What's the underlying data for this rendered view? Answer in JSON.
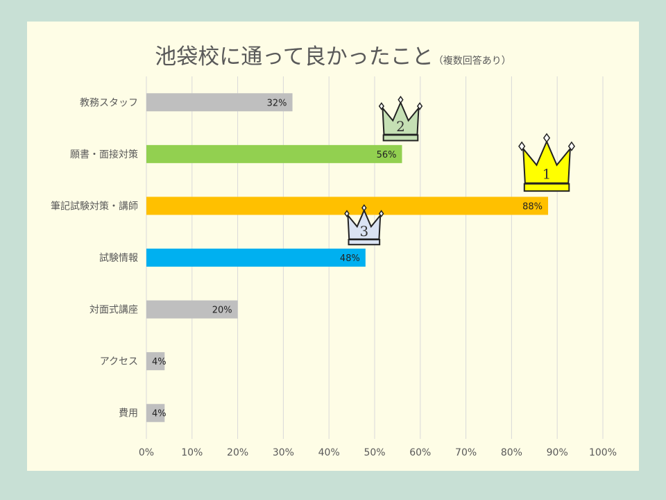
{
  "chart_data": {
    "type": "bar",
    "orientation": "horizontal",
    "title": "池袋校に通って良かったこと",
    "subtitle": "（複数回答あり）",
    "categories": [
      "教務スタッフ",
      "願書・面接対策",
      "筆記試験対策・講師",
      "試験情報",
      "対面式講座",
      "アクセス",
      "費用"
    ],
    "values": [
      32,
      56,
      88,
      48,
      20,
      4,
      4
    ],
    "value_labels": [
      "32%",
      "56%",
      "88%",
      "48%",
      "20%",
      "4%",
      "4%"
    ],
    "bar_colors": [
      "#bfbfbf",
      "#92d050",
      "#ffc000",
      "#00b0f0",
      "#bfbfbf",
      "#bfbfbf",
      "#bfbfbf"
    ],
    "xlim": [
      0,
      100
    ],
    "x_ticks": [
      0,
      10,
      20,
      30,
      40,
      50,
      60,
      70,
      80,
      90,
      100
    ],
    "x_tick_labels": [
      "0%",
      "10%",
      "20%",
      "30%",
      "40%",
      "50%",
      "60%",
      "70%",
      "80%",
      "90%",
      "100%"
    ],
    "grid": "vertical",
    "legend": "none",
    "rank_badges": [
      {
        "category": "筆記試験対策・講師",
        "rank": "1",
        "icon": "crown-icon",
        "color": "#ffff00"
      },
      {
        "category": "願書・面接対策",
        "rank": "2",
        "icon": "crown-icon",
        "color": "#c5e0b4"
      },
      {
        "category": "試験情報",
        "rank": "3",
        "icon": "crown-icon",
        "color": "#dae3f3"
      }
    ]
  },
  "colors": {
    "background": "#c8e0d5",
    "panel": "#fefde6",
    "text": "#595959",
    "gridline": "#d9d9d9"
  }
}
